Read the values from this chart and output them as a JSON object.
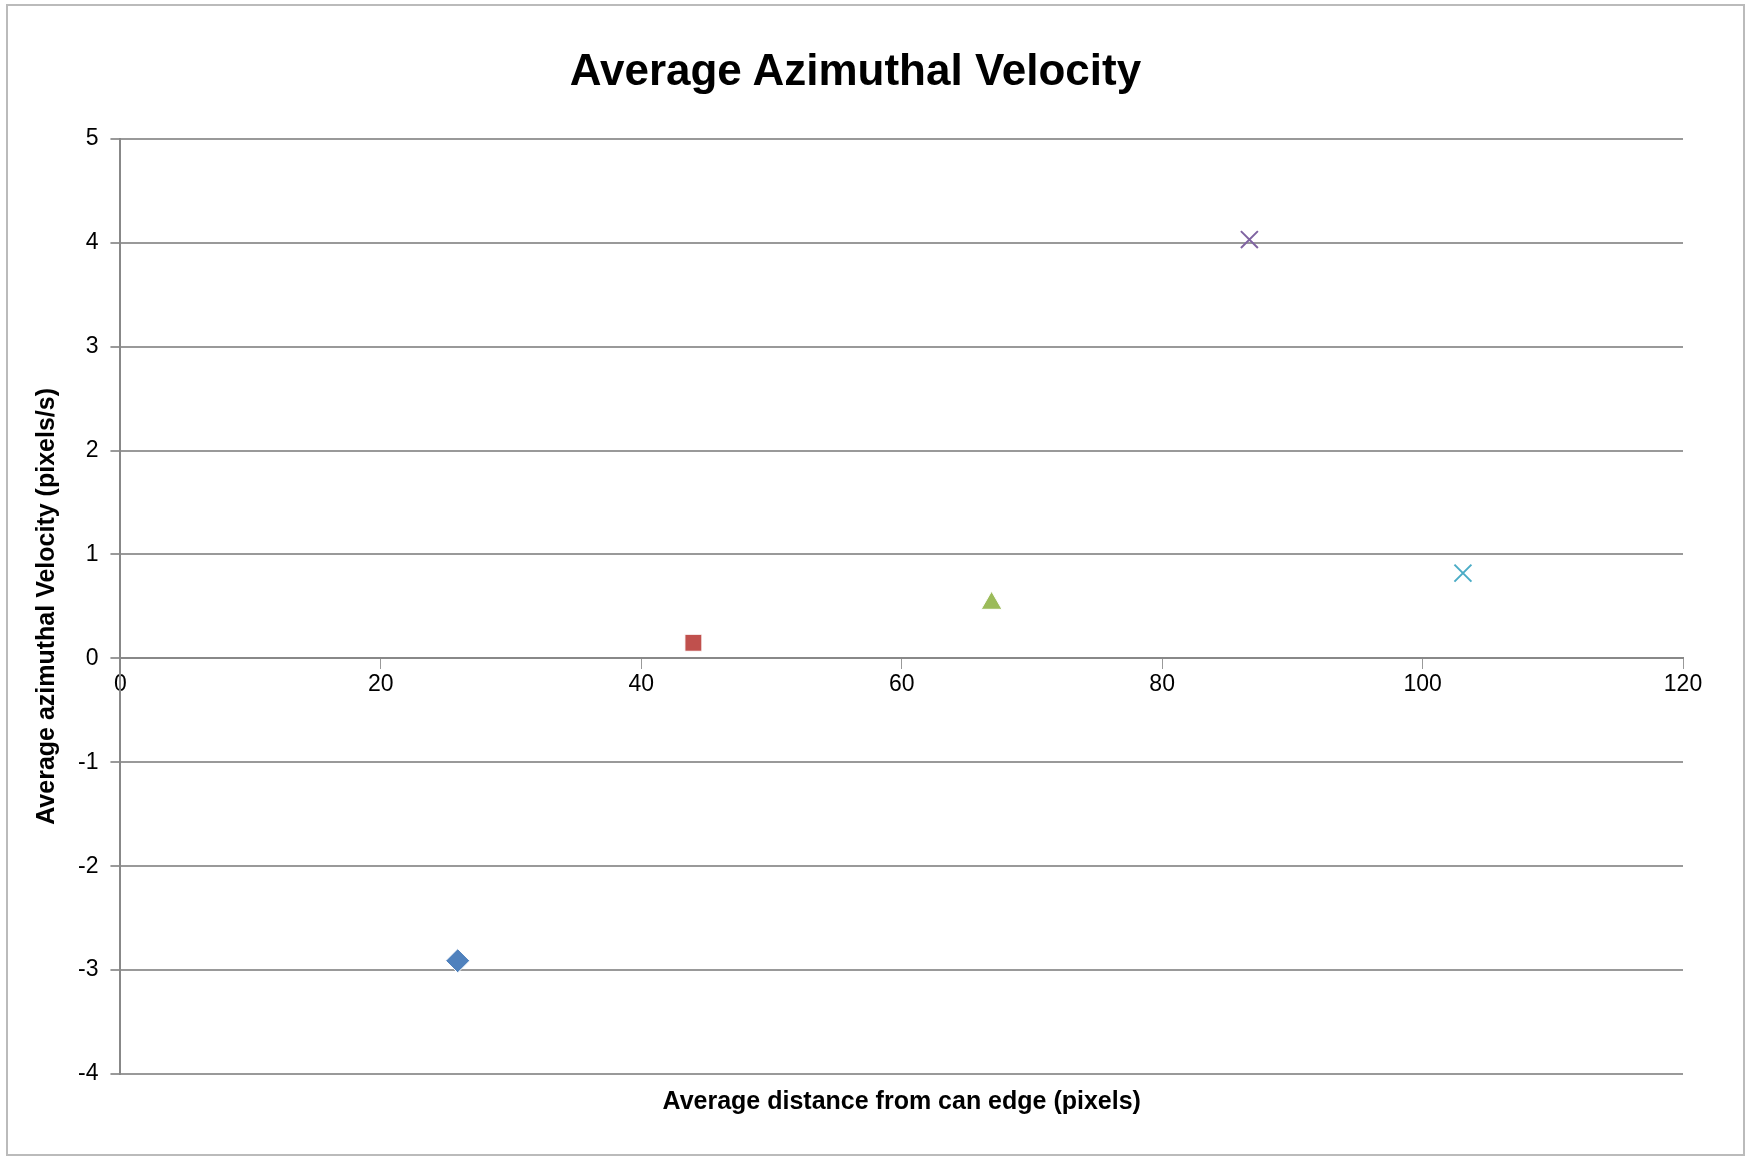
{
  "chart_data": {
    "type": "scatter",
    "title": "Average Azimuthal Velocity",
    "xlabel": "Average distance from can edge (pixels)",
    "ylabel": "Average azimuthal Velocity (pixels/s)",
    "series": [
      {
        "color": "#4f81bd",
        "marker": "diamond",
        "x": [
          25.9
        ],
        "values": [
          -2.91
        ]
      },
      {
        "color": "#c0504d",
        "marker": "square",
        "x": [
          44.0
        ],
        "values": [
          0.15
        ]
      },
      {
        "color": "#9bbb59",
        "marker": "triangle",
        "x": [
          66.9
        ],
        "values": [
          0.53
        ]
      },
      {
        "color": "#8064a2",
        "marker": "cross",
        "x": [
          86.7
        ],
        "values": [
          4.03
        ]
      },
      {
        "color": "#4bacc6",
        "marker": "cross",
        "x": [
          103.1
        ],
        "values": [
          0.82
        ]
      }
    ],
    "xlim": [
      0,
      120
    ],
    "xticks": [
      0,
      20,
      40,
      60,
      80,
      100,
      120
    ],
    "ylim": [
      -4,
      5
    ],
    "yticks": [
      -4,
      -3,
      -2,
      -1,
      0,
      1,
      2,
      3,
      4,
      5
    ],
    "grid": "y",
    "legend": false
  }
}
